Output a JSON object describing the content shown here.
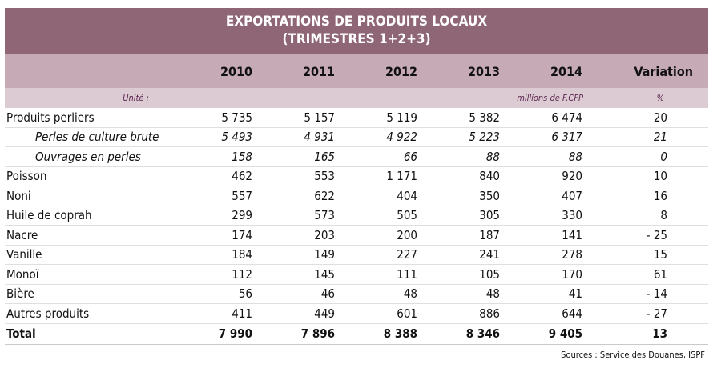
{
  "title": {
    "line1": "EXPORTATIONS DE PRODUITS LOCAUX",
    "line2": "(TRIMESTRES 1+2+3)"
  },
  "columns": [
    "2010",
    "2011",
    "2012",
    "2013",
    "2014",
    "Variation"
  ],
  "units": {
    "label": "Unité :",
    "values": "millions de F.CFP",
    "variation": "%"
  },
  "rows": [
    {
      "label": "Produits perliers",
      "values": [
        "5 735",
        "5 157",
        "5 119",
        "5 382",
        "6 474"
      ],
      "variation": "20"
    },
    {
      "label": "Perles de culture brute",
      "values": [
        "5 493",
        "4 931",
        "4 922",
        "5 223",
        "6 317"
      ],
      "variation": "21"
    },
    {
      "label": "Ouvrages en perles",
      "values": [
        "158",
        "165",
        "66",
        "88",
        "88"
      ],
      "variation": "0"
    },
    {
      "label": "Poisson",
      "values": [
        "462",
        "553",
        "1 171",
        "840",
        "920"
      ],
      "variation": "10"
    },
    {
      "label": "Noni",
      "values": [
        "557",
        "622",
        "404",
        "350",
        "407"
      ],
      "variation": "16"
    },
    {
      "label": "Huile de coprah",
      "values": [
        "299",
        "573",
        "505",
        "305",
        "330"
      ],
      "variation": "8"
    },
    {
      "label": "Nacre",
      "values": [
        "174",
        "203",
        "200",
        "187",
        "141"
      ],
      "variation": "- 25"
    },
    {
      "label": "Vanille",
      "values": [
        "184",
        "149",
        "227",
        "241",
        "278"
      ],
      "variation": "15"
    },
    {
      "label": "Monoï",
      "values": [
        "112",
        "145",
        "111",
        "105",
        "170"
      ],
      "variation": "61"
    },
    {
      "label": "Bière",
      "values": [
        "56",
        "46",
        "48",
        "48",
        "41"
      ],
      "variation": "- 14"
    },
    {
      "label": "Autres produits",
      "values": [
        "411",
        "449",
        "601",
        "886",
        "644"
      ],
      "variation": "- 27"
    },
    {
      "label": "Total",
      "values": [
        "7 990",
        "7 896",
        "8 388",
        "8 346",
        "9 405"
      ],
      "variation": "13"
    }
  ],
  "source": "Sources : Service des Douanes, ISPF",
  "colors": {
    "title_bg": "#8f6676",
    "header_bg": "#c6aab5",
    "unit_bg": "#dccbd2"
  }
}
